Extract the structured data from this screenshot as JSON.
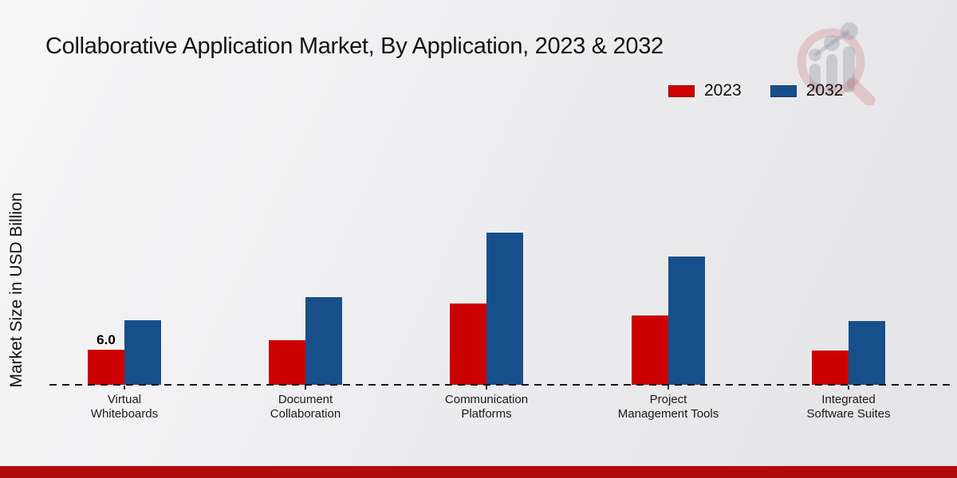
{
  "title": "Collaborative Application Market, By Application, 2023 & 2032",
  "colors": {
    "series_2023": "#cc0101",
    "series_2032": "#174f8b",
    "footer_bar": "#b00c0c",
    "axis": "#141414"
  },
  "chart_data": {
    "type": "bar",
    "title": "Collaborative Application Market, By Application, 2023 & 2032",
    "ylabel": "Market Size in USD Billion",
    "xlabel": "",
    "ylim": [
      0,
      30
    ],
    "grid": false,
    "legend_position": "top-right",
    "categories": [
      "Virtual Whiteboards",
      "Document Collaboration",
      "Communication Platforms",
      "Project Management Tools",
      "Integrated Software Suites"
    ],
    "series": [
      {
        "name": "2023",
        "color": "#cc0101",
        "values": [
          6.0,
          7.7,
          14.1,
          12.0,
          5.9
        ]
      },
      {
        "name": "2032",
        "color": "#174f8b",
        "values": [
          11.2,
          15.2,
          26.4,
          22.2,
          11.1
        ]
      }
    ],
    "annotations": [
      {
        "series": "2023",
        "category": "Virtual Whiteboards",
        "text": "6.0"
      }
    ]
  }
}
